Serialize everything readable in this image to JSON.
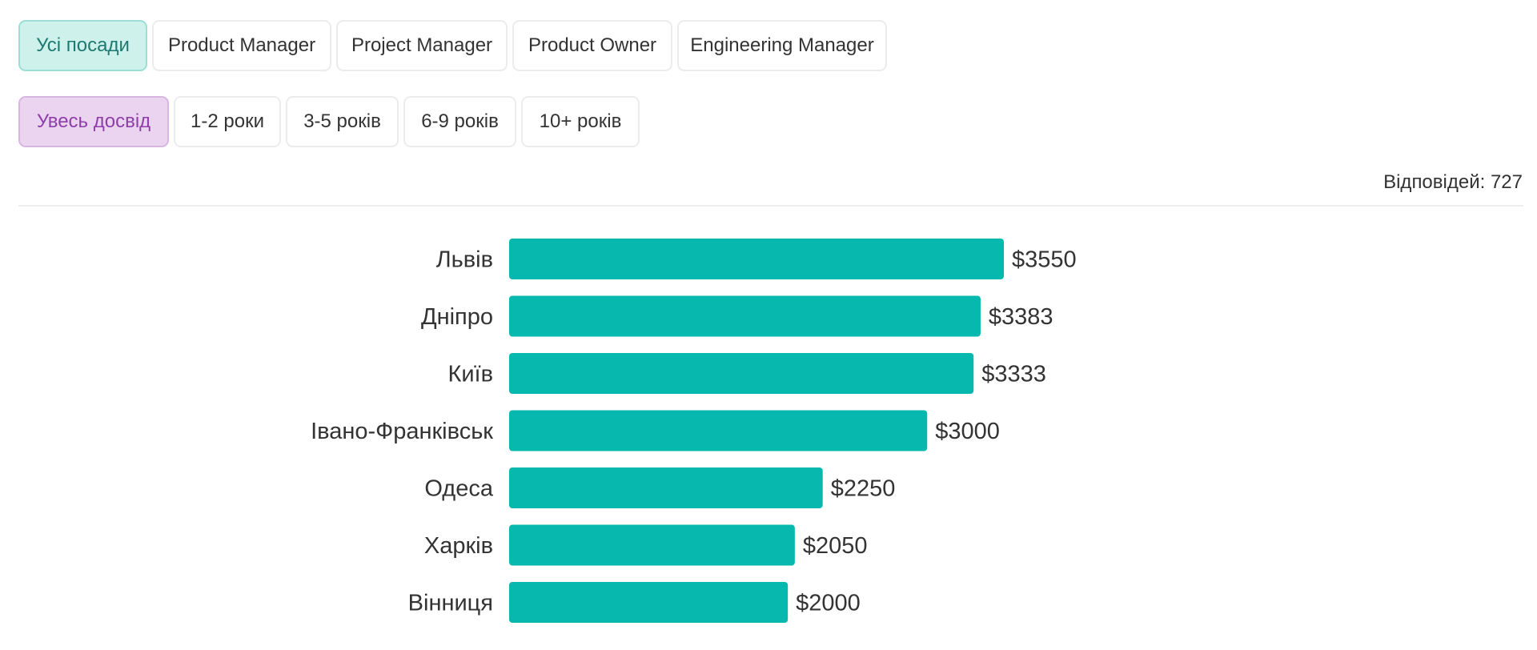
{
  "filters": {
    "positions": [
      {
        "label": "Усі посади",
        "active": true
      },
      {
        "label": "Product Manager",
        "active": false
      },
      {
        "label": "Project Manager",
        "active": false
      },
      {
        "label": "Product Owner",
        "active": false
      },
      {
        "label": "Engineering Manager",
        "active": false
      }
    ],
    "experience": [
      {
        "label": "Увесь досвід",
        "active": true
      },
      {
        "label": "1-2 роки",
        "active": false
      },
      {
        "label": "3-5 років",
        "active": false
      },
      {
        "label": "6-9 років",
        "active": false
      },
      {
        "label": "10+ років",
        "active": false
      }
    ]
  },
  "responses_text": "Відповідей: 727",
  "colors": {
    "bar": "#06b8ae",
    "active_position_bg": "#cef1ec",
    "active_experience_bg": "#ead4f0"
  },
  "chart_data": {
    "type": "bar",
    "orientation": "horizontal",
    "categories": [
      "Львів",
      "Дніпро",
      "Київ",
      "Івано-Франківськ",
      "Одеса",
      "Харків",
      "Вінниця"
    ],
    "values": [
      3550,
      3383,
      3333,
      3000,
      2250,
      2050,
      2000
    ],
    "value_labels": [
      "$3550",
      "$3383",
      "$3333",
      "$3000",
      "$2250",
      "$2050",
      "$2000"
    ],
    "xlim": [
      0,
      3550
    ]
  }
}
